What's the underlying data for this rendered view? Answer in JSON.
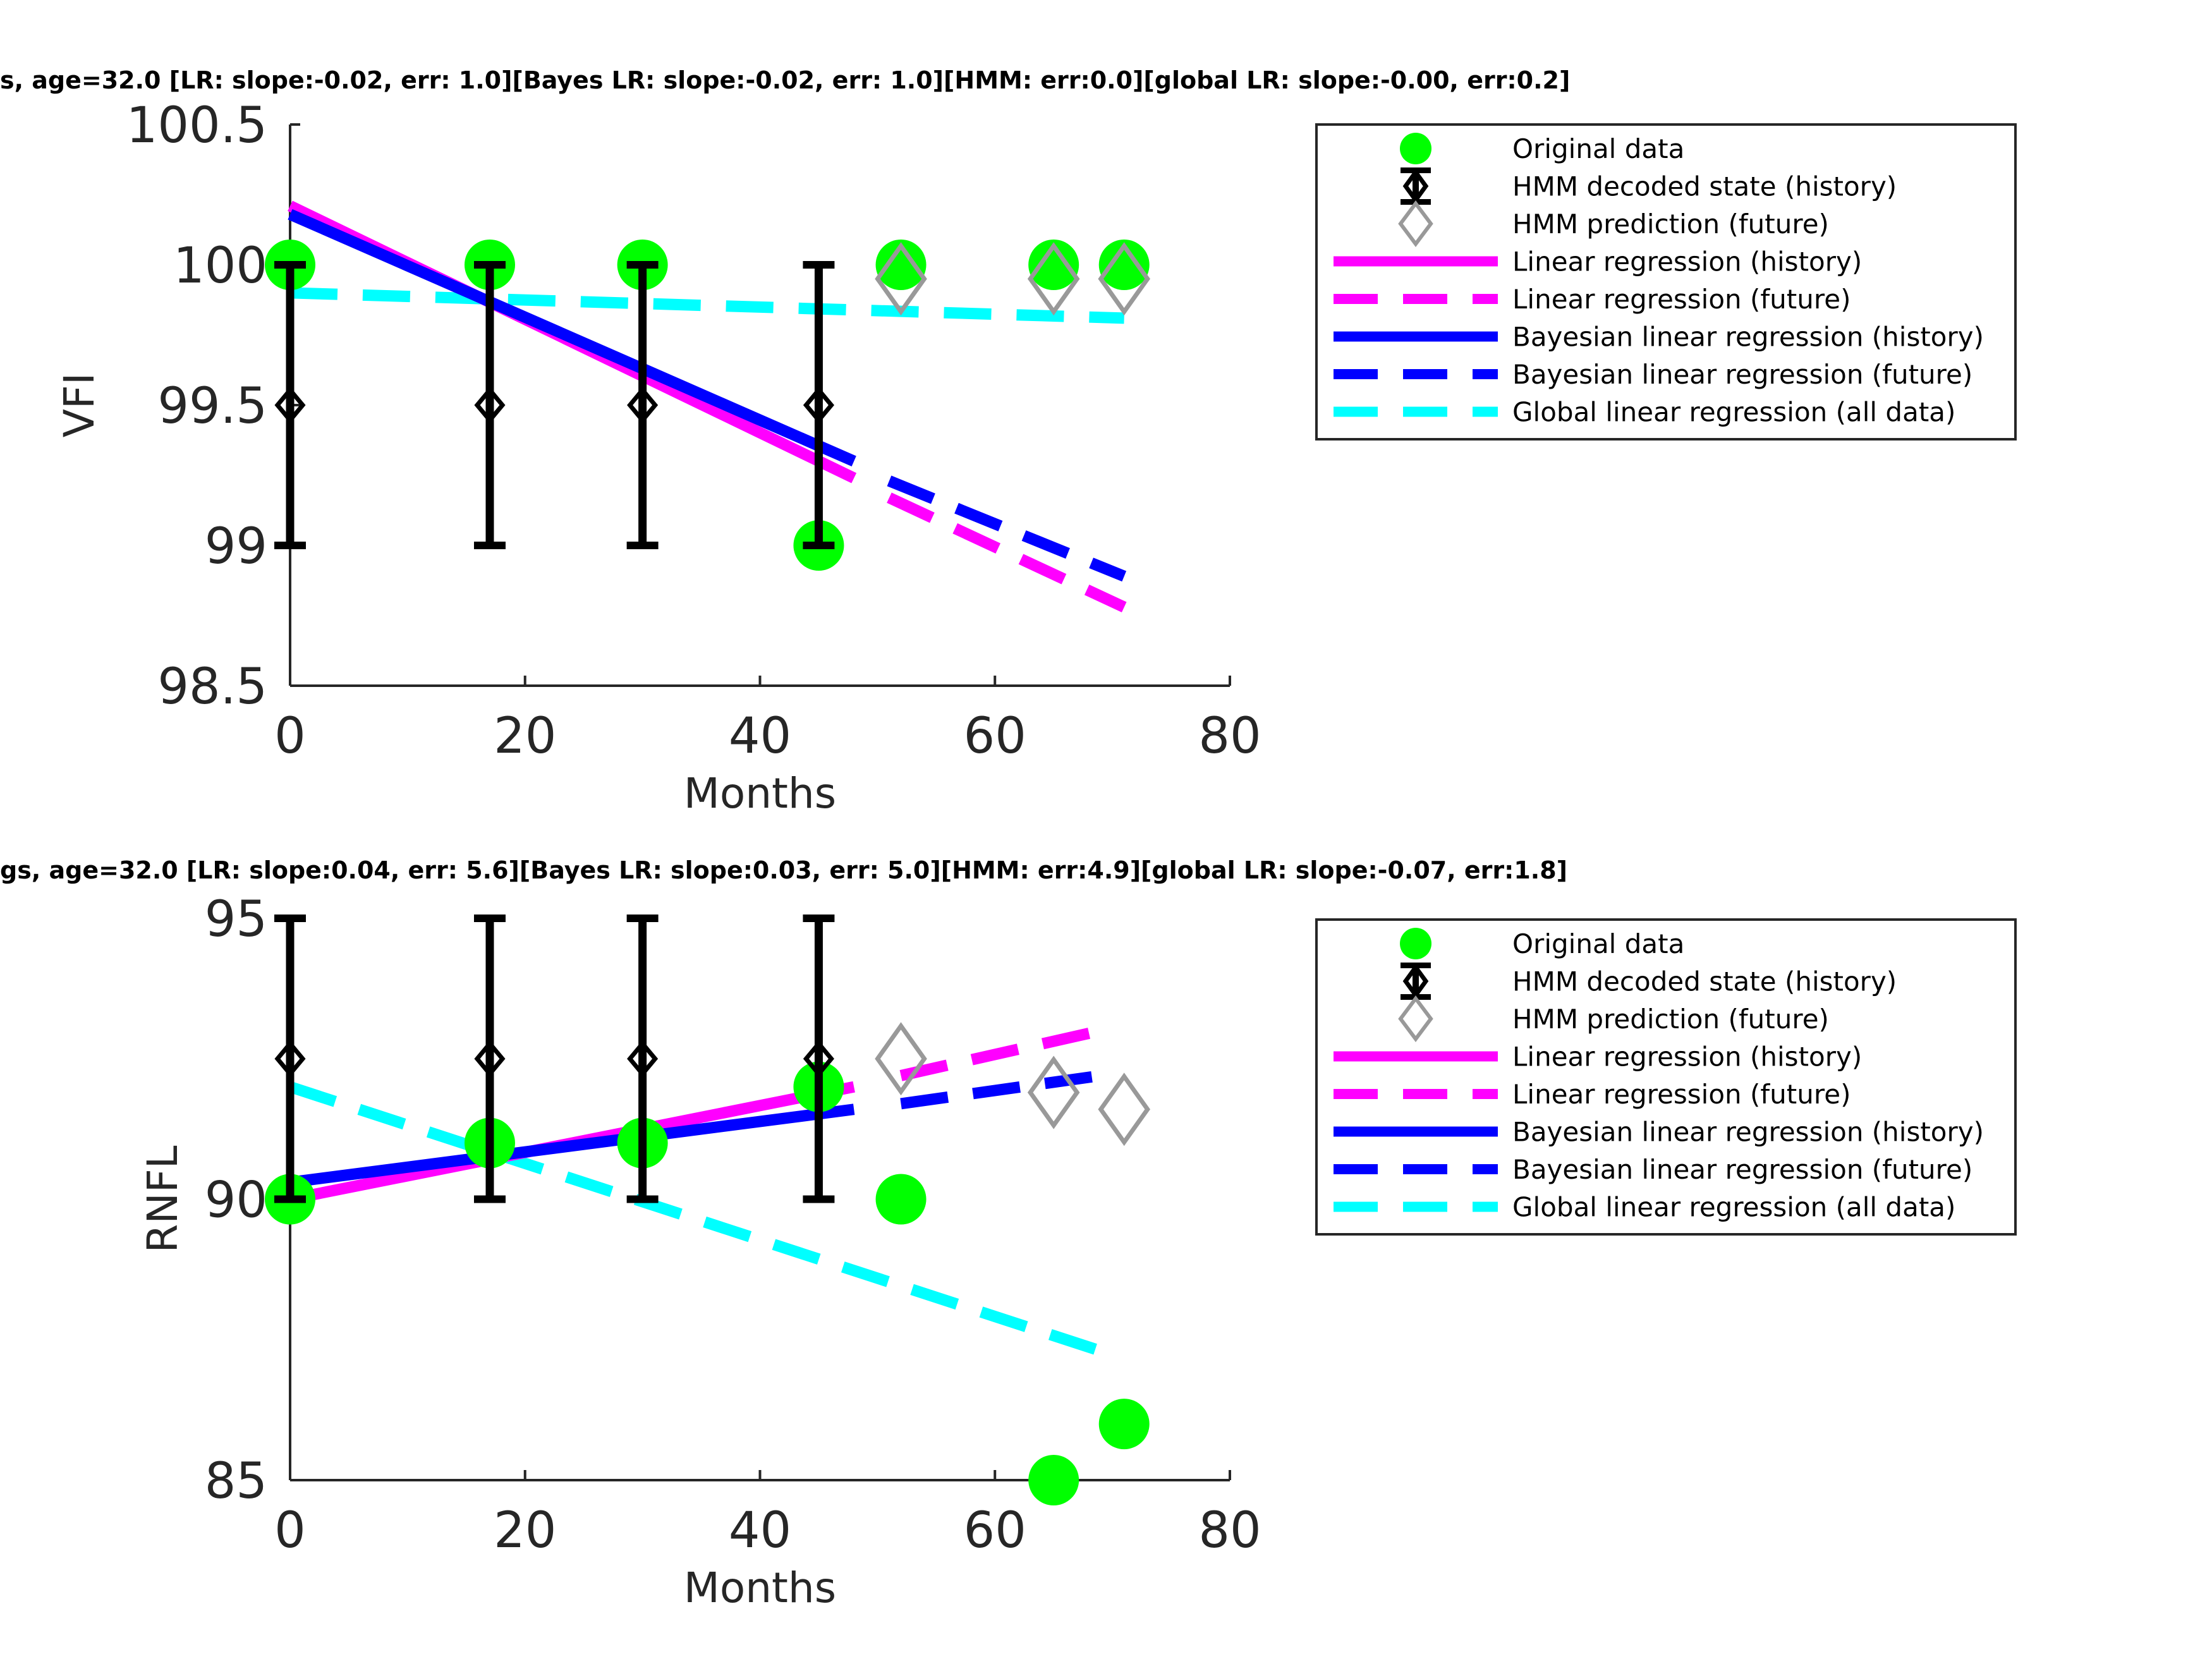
{
  "chart_data": [
    {
      "type": "line",
      "title": "s, age=32.0 [LR: slope:-0.02, err: 1.0][Bayes LR: slope:-0.02, err: 1.0][HMM: err:0.0][global LR: slope:-0.00, err:0.2]",
      "xlabel": "Months",
      "ylabel": "VFI",
      "xlim": [
        0,
        80
      ],
      "ylim": [
        98.5,
        100.5
      ],
      "xticks": [
        "0",
        "20",
        "40",
        "60",
        "80"
      ],
      "yticks": [
        "98.5",
        "99",
        "99.5",
        "100",
        "100.5"
      ],
      "grid": false,
      "legend_position": "outside-right",
      "series": [
        {
          "name": "Original data",
          "kind": "scatter",
          "color": "#00ff00",
          "x": [
            0,
            17,
            30,
            45,
            52,
            65,
            71
          ],
          "y": [
            100,
            100,
            100,
            99,
            100,
            100,
            100
          ]
        },
        {
          "name": "HMM decoded state (history)",
          "kind": "errorbar",
          "color": "#000000",
          "x": [
            0,
            17,
            30,
            45
          ],
          "y": [
            99.5,
            99.5,
            99.5,
            99.5
          ],
          "low": [
            99,
            99,
            99,
            99
          ],
          "high": [
            100,
            100,
            100,
            100
          ]
        },
        {
          "name": "HMM prediction (future)",
          "kind": "diamond",
          "color": "#999999",
          "x": [
            52,
            65,
            71
          ],
          "y": [
            99.95,
            99.95,
            99.95
          ]
        },
        {
          "name": "Linear regression (history)",
          "kind": "solid",
          "color": "#ff00ff",
          "x": [
            0,
            48
          ],
          "y": [
            100.21,
            99.24
          ]
        },
        {
          "name": "Linear regression (future)",
          "kind": "dashed",
          "color": "#ff00ff",
          "x": [
            51,
            71
          ],
          "y": [
            99.17,
            98.78
          ]
        },
        {
          "name": "Bayesian linear regression (history)",
          "kind": "solid",
          "color": "#0000ff",
          "x": [
            0,
            48
          ],
          "y": [
            100.18,
            99.3
          ]
        },
        {
          "name": "Bayesian linear regression (future)",
          "kind": "dashed",
          "color": "#0000ff",
          "x": [
            51,
            71
          ],
          "y": [
            99.23,
            98.89
          ]
        },
        {
          "name": "Global linear regression (all data)",
          "kind": "dashed",
          "color": "#00ffff",
          "x": [
            0,
            71
          ],
          "y": [
            99.9,
            99.81
          ]
        }
      ]
    },
    {
      "type": "line",
      "title": "gs, age=32.0 [LR: slope:0.04, err: 5.6][Bayes LR: slope:0.03, err: 5.0][HMM: err:4.9][global LR: slope:-0.07, err:1.8]",
      "xlabel": "Months",
      "ylabel": "RNFL",
      "xlim": [
        0,
        80
      ],
      "ylim": [
        85,
        95
      ],
      "xticks": [
        "0",
        "20",
        "40",
        "60",
        "80"
      ],
      "yticks": [
        "85",
        "90",
        "95"
      ],
      "grid": false,
      "legend_position": "outside-right",
      "series": [
        {
          "name": "Original data",
          "kind": "scatter",
          "color": "#00ff00",
          "x": [
            0,
            17,
            30,
            45,
            52,
            65,
            71
          ],
          "y": [
            90,
            91,
            91,
            92,
            90,
            85,
            86
          ]
        },
        {
          "name": "HMM decoded state (history)",
          "kind": "errorbar",
          "color": "#000000",
          "x": [
            0,
            17,
            30,
            45
          ],
          "y": [
            92.5,
            92.5,
            92.5,
            92.5
          ],
          "low": [
            90,
            90,
            90,
            90
          ],
          "high": [
            95,
            95,
            95,
            95
          ]
        },
        {
          "name": "HMM prediction (future)",
          "kind": "diamond",
          "color": "#999999",
          "x": [
            52,
            65,
            71
          ],
          "y": [
            92.5,
            91.9,
            91.6
          ]
        },
        {
          "name": "Linear regression (history)",
          "kind": "solid",
          "color": "#ff00ff",
          "x": [
            0,
            48
          ],
          "y": [
            90.0,
            92.0
          ]
        },
        {
          "name": "Linear regression (future)",
          "kind": "dashed",
          "color": "#ff00ff",
          "x": [
            52,
            69
          ],
          "y": [
            92.2,
            93.0
          ]
        },
        {
          "name": "Bayesian linear regression (history)",
          "kind": "solid",
          "color": "#0000ff",
          "x": [
            0,
            48
          ],
          "y": [
            90.3,
            91.6
          ]
        },
        {
          "name": "Bayesian linear regression (future)",
          "kind": "dashed",
          "color": "#0000ff",
          "x": [
            52,
            69
          ],
          "y": [
            91.7,
            92.2
          ]
        },
        {
          "name": "Global linear regression (all data)",
          "kind": "dashed",
          "color": "#00ffff",
          "x": [
            0,
            69
          ],
          "y": [
            92.0,
            87.3
          ]
        }
      ]
    }
  ]
}
